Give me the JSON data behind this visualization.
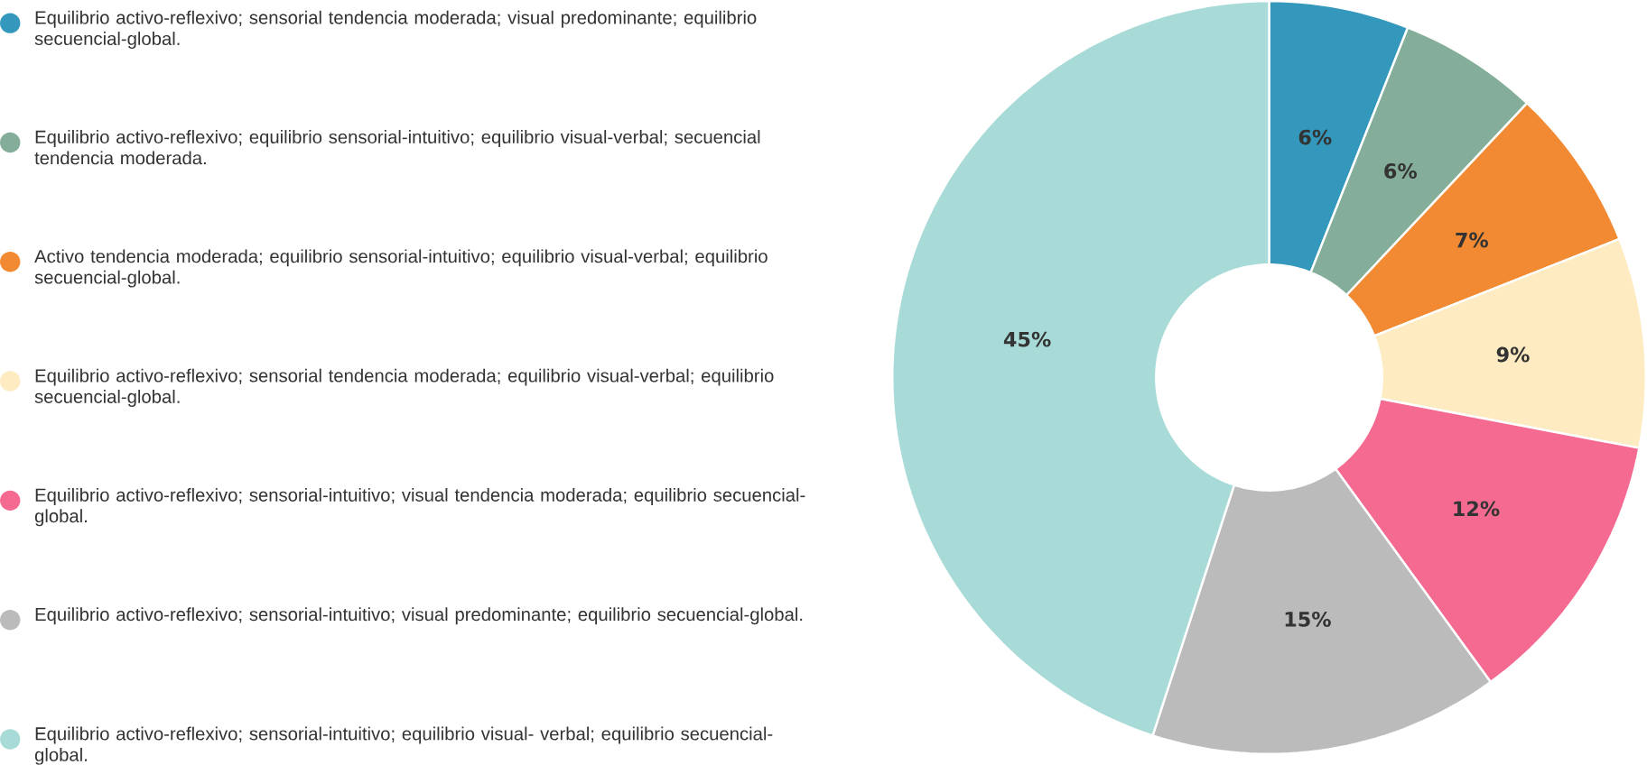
{
  "chart_data": {
    "type": "donut",
    "categories": [
      "Equilibrio activo-reflexivo; sensorial tendencia moderada; visual predominante; equilibrio secuencial-global.",
      "Equilibrio activo-reflexivo; equilibrio sensorial-intuitivo; equilibrio visual-verbal; secuencial tendencia moderada.",
      "Activo tendencia moderada; equilibrio sensorial-intuitivo; equilibrio visual-verbal; equilibrio secuencial-global.",
      "Equilibrio activo-reflexivo; sensorial tendencia moderada; equilibrio visual-verbal; equilibrio secuencial-global.",
      "Equilibrio activo-reflexivo; sensorial-intuitivo; visual tendencia moderada; equilibrio secuencial-global.",
      "Equilibrio activo-reflexivo; sensorial-intuitivo; visual predominante; equilibrio secuencial-global.",
      "Equilibrio activo-reflexivo; sensorial-intuitivo; equilibrio visual- verbal; equilibrio secuencial-global."
    ],
    "values": [
      6,
      6,
      7,
      9,
      12,
      15,
      45
    ],
    "value_labels": [
      "6%",
      "6%",
      "7%",
      "9%",
      "12%",
      "15%",
      "45%"
    ],
    "colors": [
      "#3398bb",
      "#84ae99",
      "#f28a33",
      "#feebc1",
      "#f56a90",
      "#bbbbbb",
      "#a8dbd7"
    ],
    "legend": "left"
  }
}
